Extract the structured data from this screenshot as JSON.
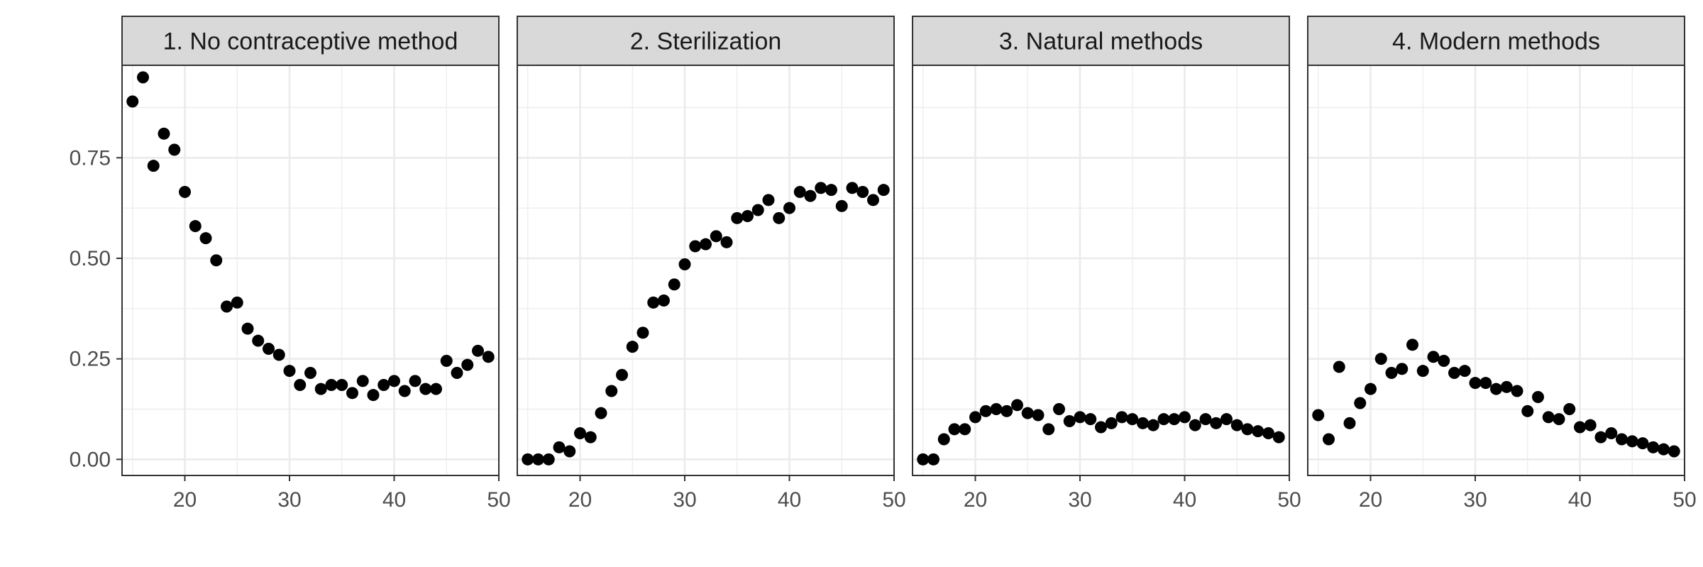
{
  "chart_data": {
    "type": "scatter",
    "layout": "facet_wrap_1x4",
    "shared_y": true,
    "xlim": [
      14,
      50
    ],
    "ylim": [
      -0.04,
      0.98
    ],
    "x_ticks": [
      20,
      30,
      40,
      50
    ],
    "x_tick_labels": [
      "20",
      "30",
      "40",
      "50"
    ],
    "x_minor_ticks": [
      15,
      25,
      35,
      45
    ],
    "y_ticks": [
      0.0,
      0.25,
      0.5,
      0.75
    ],
    "y_tick_labels": [
      "0.00",
      "0.25",
      "0.50",
      "0.75"
    ],
    "y_minor_ticks": [
      0.125,
      0.375,
      0.625,
      0.875
    ],
    "xlabel": "",
    "ylabel": "",
    "grid": true,
    "legend": "none",
    "colors": {
      "points": "#000000",
      "strip_bg": "#d9d9d9",
      "grid": "#ebebeb",
      "border": "#333333"
    },
    "panels": [
      {
        "title": "1. No contraceptive method",
        "x": [
          15,
          16,
          17,
          18,
          19,
          20,
          21,
          22,
          23,
          24,
          25,
          26,
          27,
          28,
          29,
          30,
          31,
          32,
          33,
          34,
          35,
          36,
          37,
          38,
          39,
          40,
          41,
          42,
          43,
          44,
          45,
          46,
          47,
          48,
          49
        ],
        "y": [
          0.89,
          0.95,
          0.73,
          0.81,
          0.77,
          0.665,
          0.58,
          0.55,
          0.495,
          0.38,
          0.39,
          0.325,
          0.295,
          0.275,
          0.26,
          0.22,
          0.185,
          0.215,
          0.175,
          0.185,
          0.185,
          0.165,
          0.195,
          0.16,
          0.185,
          0.195,
          0.17,
          0.195,
          0.175,
          0.175,
          0.245,
          0.215,
          0.235,
          0.27,
          0.255
        ]
      },
      {
        "title": "2. Sterilization",
        "x": [
          15,
          16,
          17,
          18,
          19,
          20,
          21,
          22,
          23,
          24,
          25,
          26,
          27,
          28,
          29,
          30,
          31,
          32,
          33,
          34,
          35,
          36,
          37,
          38,
          39,
          40,
          41,
          42,
          43,
          44,
          45,
          46,
          47,
          48,
          49
        ],
        "y": [
          0.0,
          0.0,
          0.0,
          0.03,
          0.02,
          0.065,
          0.055,
          0.115,
          0.17,
          0.21,
          0.28,
          0.315,
          0.39,
          0.395,
          0.435,
          0.485,
          0.53,
          0.535,
          0.555,
          0.54,
          0.6,
          0.605,
          0.62,
          0.645,
          0.6,
          0.625,
          0.665,
          0.655,
          0.675,
          0.67,
          0.63,
          0.675,
          0.665,
          0.645,
          0.67
        ]
      },
      {
        "title": "3. Natural methods",
        "x": [
          15,
          16,
          17,
          18,
          19,
          20,
          21,
          22,
          23,
          24,
          25,
          26,
          27,
          28,
          29,
          30,
          31,
          32,
          33,
          34,
          35,
          36,
          37,
          38,
          39,
          40,
          41,
          42,
          43,
          44,
          45,
          46,
          47,
          48,
          49
        ],
        "y": [
          0.0,
          0.0,
          0.05,
          0.075,
          0.075,
          0.105,
          0.12,
          0.125,
          0.12,
          0.135,
          0.115,
          0.11,
          0.075,
          0.125,
          0.095,
          0.105,
          0.1,
          0.08,
          0.09,
          0.105,
          0.1,
          0.09,
          0.085,
          0.1,
          0.1,
          0.105,
          0.085,
          0.1,
          0.09,
          0.1,
          0.085,
          0.075,
          0.07,
          0.065,
          0.055
        ]
      },
      {
        "title": "4. Modern methods",
        "x": [
          15,
          16,
          17,
          18,
          19,
          20,
          21,
          22,
          23,
          24,
          25,
          26,
          27,
          28,
          29,
          30,
          31,
          32,
          33,
          34,
          35,
          36,
          37,
          38,
          39,
          40,
          41,
          42,
          43,
          44,
          45,
          46,
          47,
          48,
          49
        ],
        "y": [
          0.11,
          0.05,
          0.23,
          0.09,
          0.14,
          0.175,
          0.25,
          0.215,
          0.225,
          0.285,
          0.22,
          0.255,
          0.245,
          0.215,
          0.22,
          0.19,
          0.19,
          0.175,
          0.18,
          0.17,
          0.12,
          0.155,
          0.105,
          0.1,
          0.125,
          0.08,
          0.085,
          0.055,
          0.065,
          0.05,
          0.045,
          0.04,
          0.03,
          0.025,
          0.02
        ]
      }
    ]
  }
}
